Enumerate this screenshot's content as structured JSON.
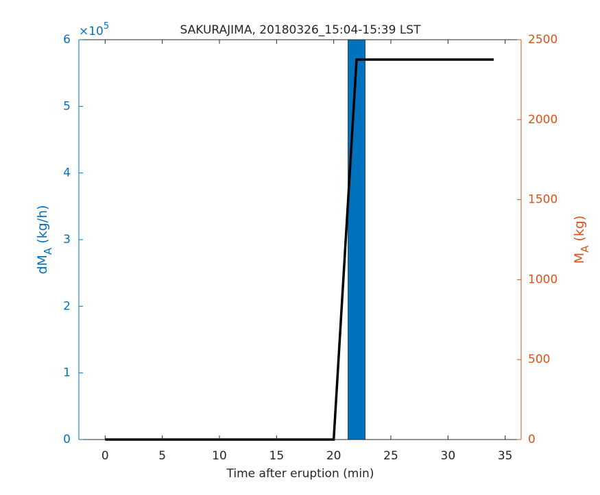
{
  "chart_data": {
    "type": "combo",
    "title": "SAKURAJIMA, 20180326_15:04-15:39 LST",
    "xlabel": "Time after eruption (min)",
    "ylabel": {
      "main": "dM",
      "sub": "A",
      "unit": "(kg/h)"
    },
    "y2label": {
      "main": "M",
      "sub": "A",
      "unit": "(kg)"
    },
    "y_multiplier": {
      "base": "×10",
      "exp": "5"
    },
    "xlim": [
      -2.3,
      36.4
    ],
    "xticks": [
      0,
      5,
      10,
      15,
      20,
      25,
      30,
      35
    ],
    "ylim": [
      0,
      600000
    ],
    "yticks": [
      {
        "value": 0,
        "label": "0"
      },
      {
        "value": 100000,
        "label": "1"
      },
      {
        "value": 200000,
        "label": "2"
      },
      {
        "value": 300000,
        "label": "3"
      },
      {
        "value": 400000,
        "label": "4"
      },
      {
        "value": 500000,
        "label": "5"
      },
      {
        "value": 600000,
        "label": "6"
      }
    ],
    "y2lim": [
      0,
      2500
    ],
    "y2ticks": [
      0,
      500,
      1000,
      1500,
      2000,
      2500
    ],
    "y_color": "#0072BD",
    "y2_color": "#D95319",
    "series": [
      {
        "type": "bar",
        "axis": "y",
        "color": "#0072BD",
        "x": [
          22
        ],
        "values": [
          600000
        ]
      },
      {
        "type": "line",
        "axis": "y2",
        "color": "#000000",
        "x": [
          0,
          20,
          22,
          34
        ],
        "values": [
          0,
          0,
          2376,
          2376
        ]
      }
    ]
  }
}
